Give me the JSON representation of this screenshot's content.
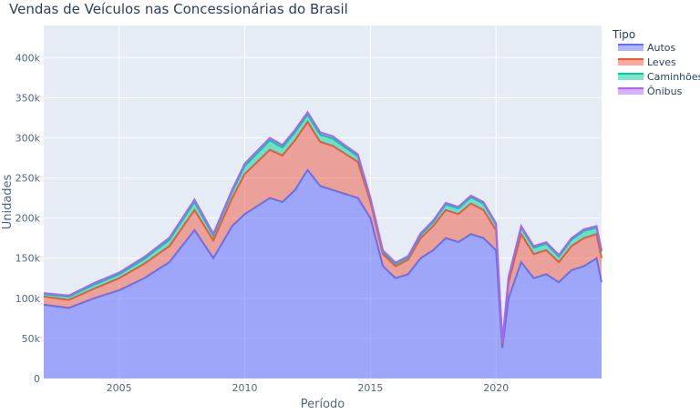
{
  "chart_data": {
    "type": "area",
    "stacked": true,
    "title": "Vendas de Veículos nas Concessionárias do Brasil",
    "xlabel": "Período",
    "ylabel": "Unidades",
    "x_range": [
      2002.0,
      2024.2
    ],
    "xticks": [
      {
        "value": 2005,
        "label": "2005"
      },
      {
        "value": 2010,
        "label": "2010"
      },
      {
        "value": 2015,
        "label": "2015"
      },
      {
        "value": 2020,
        "label": "2020"
      }
    ],
    "ylim": [
      0,
      440000
    ],
    "yticks": [
      {
        "value": 0,
        "label": "0"
      },
      {
        "value": 50000,
        "label": "50k"
      },
      {
        "value": 100000,
        "label": "100k"
      },
      {
        "value": 150000,
        "label": "150k"
      },
      {
        "value": 200000,
        "label": "200k"
      },
      {
        "value": 250000,
        "label": "250k"
      },
      {
        "value": 300000,
        "label": "300k"
      },
      {
        "value": 350000,
        "label": "350k"
      },
      {
        "value": 400000,
        "label": "400k"
      }
    ],
    "grid": true,
    "legend": {
      "title": "Tipo",
      "position": "top-right"
    },
    "colors": {
      "plot_bg": "#e5ecf6",
      "grid": "#ffffff",
      "text": "#2a3f5f",
      "axis_text": "#506784"
    },
    "x": [
      2002.0,
      2003.0,
      2004.0,
      2005.0,
      2006.0,
      2007.0,
      2008.0,
      2008.75,
      2009.5,
      2010.0,
      2010.5,
      2011.0,
      2011.5,
      2012.0,
      2012.5,
      2013.0,
      2013.5,
      2014.0,
      2014.5,
      2015.0,
      2015.5,
      2016.0,
      2016.5,
      2017.0,
      2017.5,
      2018.0,
      2018.5,
      2019.0,
      2019.5,
      2020.0,
      2020.25,
      2020.5,
      2021.0,
      2021.5,
      2022.0,
      2022.5,
      2023.0,
      2023.5,
      2024.0,
      2024.2
    ],
    "series": [
      {
        "name": "Autos",
        "color": "#636efa",
        "values": [
          92000,
          88000,
          100000,
          110000,
          125000,
          145000,
          185000,
          150000,
          190000,
          205000,
          215000,
          225000,
          220000,
          235000,
          260000,
          240000,
          235000,
          230000,
          225000,
          200000,
          140000,
          125000,
          130000,
          150000,
          160000,
          175000,
          170000,
          180000,
          175000,
          160000,
          38000,
          100000,
          145000,
          125000,
          130000,
          120000,
          135000,
          140000,
          150000,
          120000
        ]
      },
      {
        "name": "Leves",
        "color": "#ef553b",
        "values": [
          10000,
          10000,
          12000,
          15000,
          18000,
          20000,
          25000,
          22000,
          35000,
          50000,
          55000,
          60000,
          58000,
          62000,
          60000,
          55000,
          55000,
          50000,
          45000,
          20000,
          15000,
          15000,
          18000,
          25000,
          30000,
          35000,
          35000,
          38000,
          35000,
          25000,
          5000,
          20000,
          35000,
          30000,
          30000,
          25000,
          30000,
          35000,
          30000,
          30000
        ]
      },
      {
        "name": "Caminhões",
        "color": "#00cc96",
        "values": [
          3000,
          4000,
          5000,
          5000,
          6000,
          8000,
          10000,
          6000,
          8000,
          10000,
          11000,
          12000,
          10000,
          10000,
          9000,
          9000,
          9000,
          8000,
          7000,
          4000,
          3000,
          3000,
          3000,
          4000,
          5000,
          7000,
          7000,
          8000,
          8000,
          7000,
          2000,
          6000,
          8000,
          8000,
          8000,
          7000,
          8000,
          9000,
          8000,
          8000
        ]
      },
      {
        "name": "Ônibus",
        "color": "#ab63fa",
        "values": [
          1500,
          1500,
          2000,
          2000,
          2500,
          2500,
          3000,
          2500,
          2500,
          3000,
          3000,
          3000,
          3000,
          3000,
          3000,
          3000,
          3000,
          2500,
          2500,
          1500,
          1500,
          1500,
          1500,
          2000,
          2000,
          2000,
          2000,
          2000,
          2000,
          1500,
          500,
          1000,
          2000,
          2000,
          2000,
          2000,
          2000,
          2000,
          2000,
          2000
        ]
      }
    ]
  }
}
